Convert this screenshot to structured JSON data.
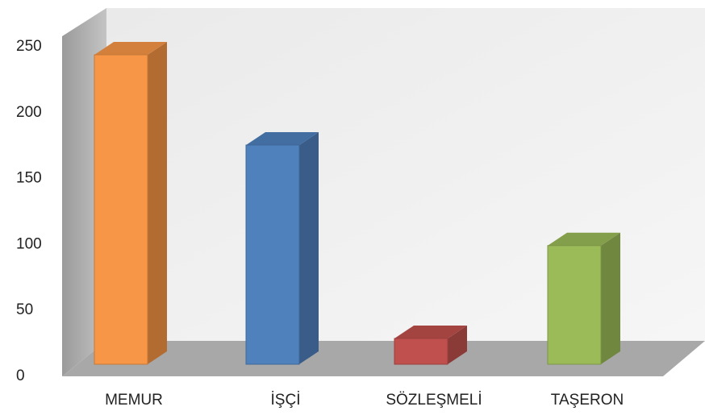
{
  "chart_data": {
    "type": "bar",
    "categories": [
      "MEMUR",
      "İŞÇİ",
      "SÖZLEŞMELİ",
      "TAŞERON"
    ],
    "series": [
      {
        "name": "",
        "values": [
          240,
          170,
          20,
          92
        ]
      }
    ],
    "colors": [
      "#f79646",
      "#4f81bd",
      "#c0504d",
      "#9bbb59"
    ],
    "ylim": [
      0,
      250
    ],
    "yticks": [
      0,
      50,
      100,
      150,
      200,
      250
    ],
    "grid": false
  }
}
